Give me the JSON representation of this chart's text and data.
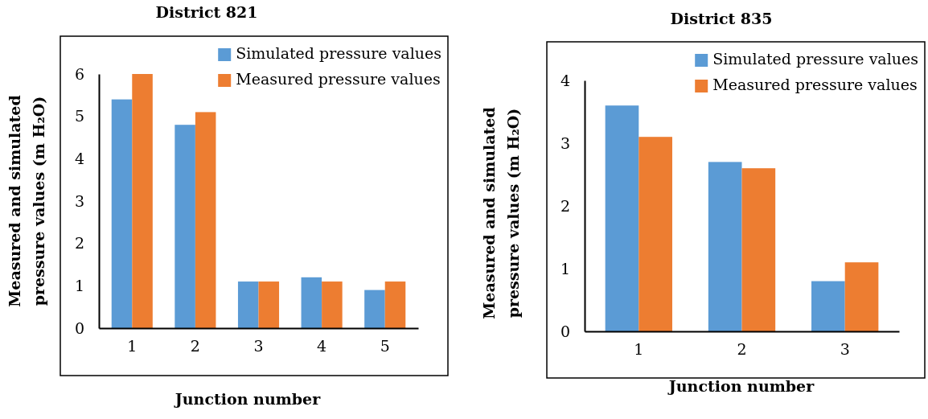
{
  "chart_data": [
    {
      "type": "bar",
      "title": "District 821",
      "xlabel": "Junction number",
      "ylabel": "Measured and simulated pressure values (m H₂O)",
      "categories": [
        "1",
        "2",
        "3",
        "4",
        "5"
      ],
      "series": [
        {
          "name": "Simulated pressure values",
          "color": "#5b9bd5",
          "values": [
            5.4,
            4.8,
            1.1,
            1.2,
            0.9
          ]
        },
        {
          "name": "Measured pressure values",
          "color": "#ed7d31",
          "values": [
            6.0,
            5.1,
            1.1,
            1.1,
            1.1
          ]
        }
      ],
      "ylim": [
        0,
        6
      ],
      "yticks": [
        0,
        1,
        2,
        3,
        4,
        5,
        6
      ],
      "legend": "top right"
    },
    {
      "type": "bar",
      "title": "District 835",
      "xlabel": "Junction number",
      "ylabel": "Measured and simulated pressure values (m H₂O)",
      "categories": [
        "1",
        "2",
        "3"
      ],
      "series": [
        {
          "name": "Simulated pressure values",
          "color": "#5b9bd5",
          "values": [
            3.6,
            2.7,
            0.8
          ]
        },
        {
          "name": "Measured pressure values",
          "color": "#ed7d31",
          "values": [
            3.1,
            2.6,
            1.1
          ]
        }
      ],
      "ylim": [
        0,
        4
      ],
      "yticks": [
        0,
        1,
        2,
        3,
        4
      ],
      "legend": "top right"
    }
  ]
}
